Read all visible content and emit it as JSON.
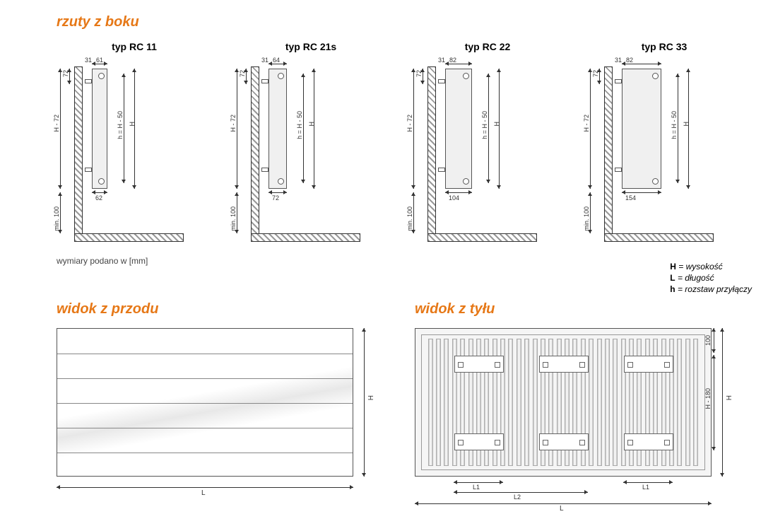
{
  "sections": {
    "side": "rzuty z boku",
    "front": "widok z przodu",
    "back": "widok z tyłu"
  },
  "types": [
    {
      "label": "typ RC 11",
      "top_offset": "61",
      "width": "62",
      "side": "31",
      "gap": "72",
      "class": "rad-11"
    },
    {
      "label": "typ RC 21s",
      "top_offset": "64",
      "width": "72",
      "side": "31",
      "gap": "72",
      "class": "rad-21"
    },
    {
      "label": "typ RC 22",
      "top_offset": "82",
      "width": "104",
      "side": "31",
      "gap": "72",
      "class": "rad-22"
    },
    {
      "label": "typ RC 33",
      "top_offset": "82",
      "width": "154",
      "side": "31",
      "gap": "72",
      "class": "rad-33"
    }
  ],
  "dims": {
    "H72": "H - 72",
    "min100": "min. 100",
    "h50": "h = H - 50",
    "H": "H",
    "H180": "H - 180",
    "d100": "100",
    "L": "L",
    "L1": "L1",
    "L2": "L2"
  },
  "note": "wymiary podano w [mm]",
  "legend": {
    "H": "= wysokość",
    "L": "= długość",
    "h": "= rozstaw przyłączy"
  },
  "colors": {
    "accent": "#e67817",
    "line": "#333333",
    "fill": "#f0f0f0"
  }
}
